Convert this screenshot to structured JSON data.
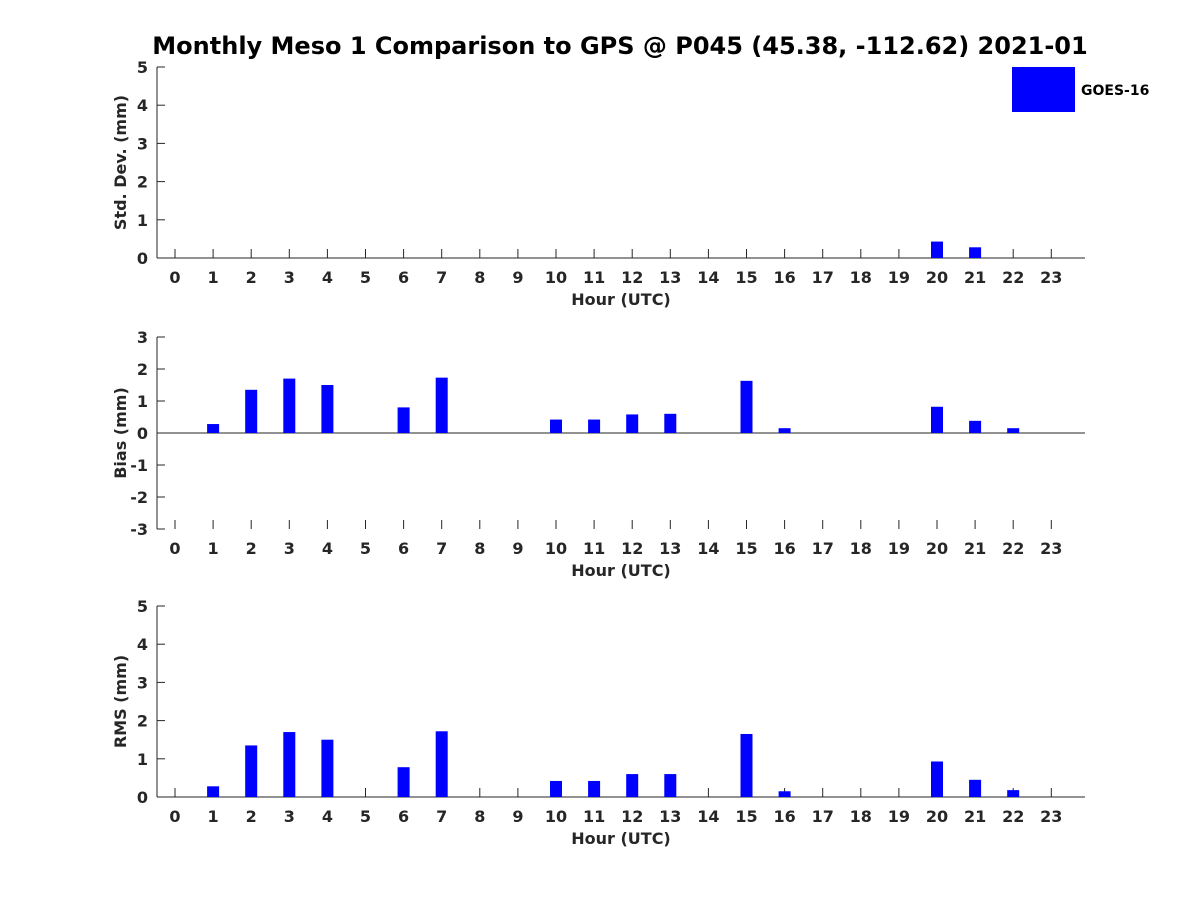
{
  "chart_data": {
    "type": "bar",
    "title": "Monthly Meso 1 Comparison to GPS @ P045 (45.38, -112.62) 2021-01",
    "legend": {
      "label": "GOES-16",
      "color": "#0000ff",
      "placement": "top-right"
    },
    "categories": [
      0,
      1,
      2,
      3,
      4,
      5,
      6,
      7,
      8,
      9,
      10,
      11,
      12,
      13,
      14,
      15,
      16,
      17,
      18,
      19,
      20,
      21,
      22,
      23
    ],
    "panels": [
      {
        "id": "std",
        "ylabel": "Std. Dev. (mm)",
        "xlabel": "Hour (UTC)",
        "ylim": [
          0,
          5
        ],
        "yticks": [
          0,
          1,
          2,
          3,
          4,
          5
        ],
        "values": [
          null,
          0,
          0,
          0,
          0,
          null,
          0,
          0,
          null,
          null,
          0,
          0,
          0,
          0,
          null,
          0,
          0,
          null,
          null,
          null,
          0.43,
          0.28,
          0,
          null
        ]
      },
      {
        "id": "bias",
        "ylabel": "Bias (mm)",
        "xlabel": "Hour (UTC)",
        "ylim": [
          -3,
          3
        ],
        "yticks": [
          -3,
          -2,
          -1,
          0,
          1,
          2,
          3
        ],
        "values": [
          null,
          0.28,
          1.35,
          1.7,
          1.5,
          null,
          0.8,
          1.73,
          null,
          null,
          0.42,
          0.42,
          0.58,
          0.6,
          null,
          1.63,
          0.15,
          null,
          null,
          null,
          0.82,
          0.38,
          0.15,
          null
        ]
      },
      {
        "id": "rms",
        "ylabel": "RMS (mm)",
        "xlabel": "Hour (UTC)",
        "ylim": [
          0,
          5
        ],
        "yticks": [
          0,
          1,
          2,
          3,
          4,
          5
        ],
        "values": [
          null,
          0.28,
          1.35,
          1.7,
          1.5,
          null,
          0.78,
          1.72,
          null,
          null,
          0.42,
          0.42,
          0.6,
          0.6,
          null,
          1.65,
          0.15,
          null,
          null,
          null,
          0.93,
          0.45,
          0.18,
          null
        ]
      }
    ]
  }
}
